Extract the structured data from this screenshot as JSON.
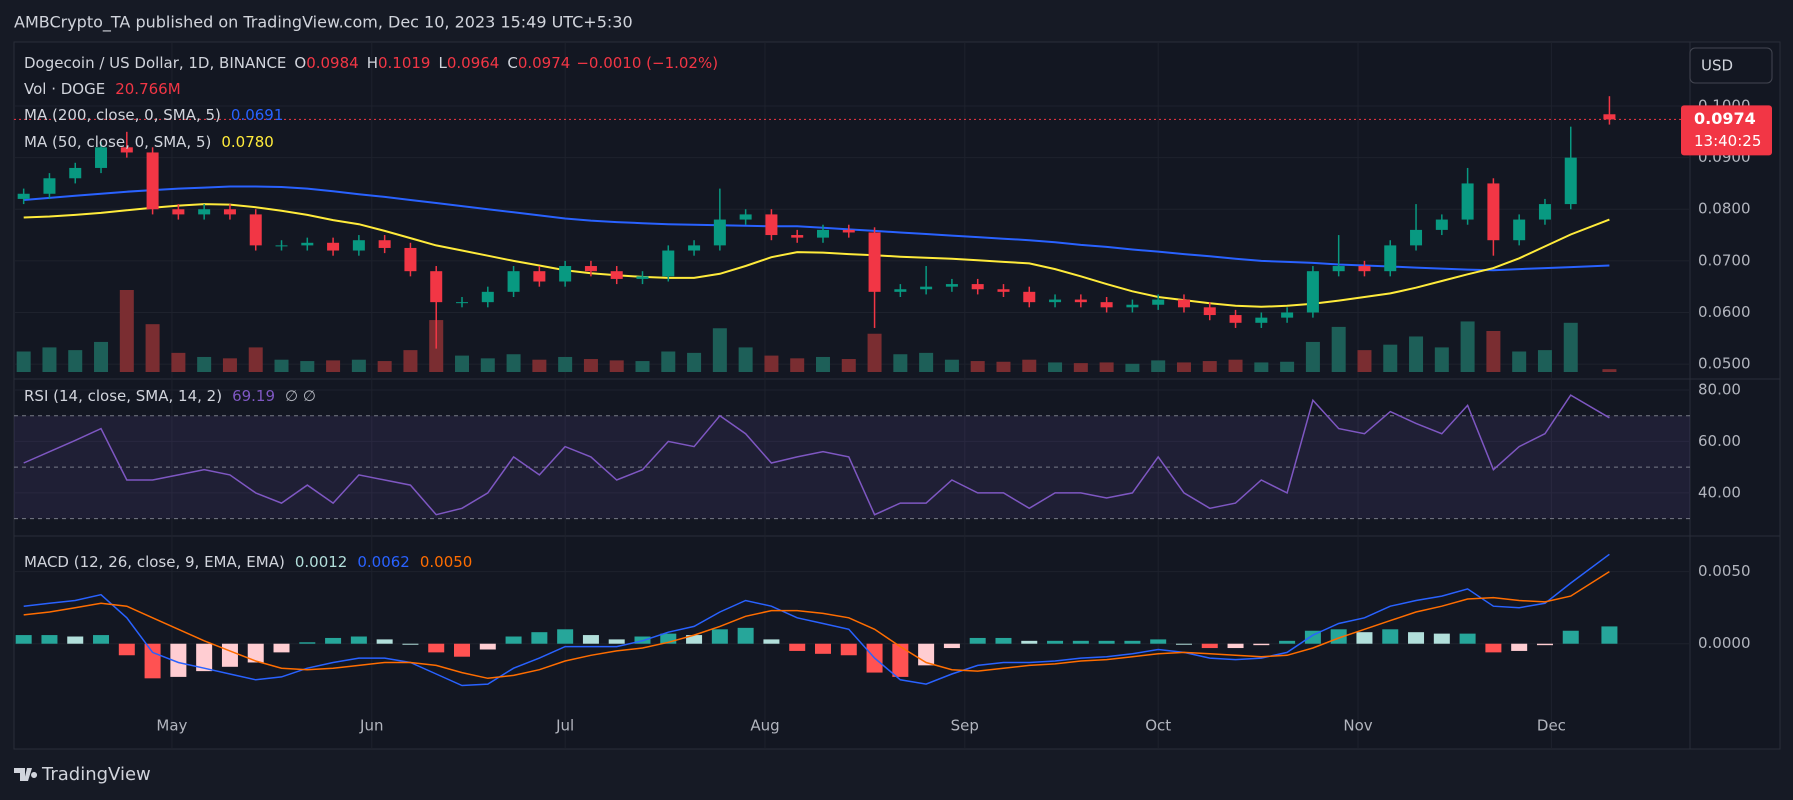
{
  "header": {
    "text": "AMBCrypto_TA published on TradingView.com, Dec 10, 2023 15:49 UTC+5:30"
  },
  "footer": {
    "brand": "TradingView"
  },
  "chart_data": {
    "type": "candlestick",
    "symbol": "Dogecoin / US Dollar, 1D, BINANCE",
    "ohlc_legend": [
      {
        "label": "O",
        "value": 0.0984
      },
      {
        "label": "H",
        "value": 0.1019
      },
      {
        "label": "L",
        "value": 0.0964
      },
      {
        "label": "C",
        "value": 0.0974
      }
    ],
    "change": "−0.0010 (−1.02%)",
    "currency": "USD",
    "last_price": 0.0974,
    "countdown": "13:40:25",
    "up_color": "#089981",
    "down_color": "#f23645",
    "x": [
      0,
      4,
      8,
      12,
      16,
      20,
      24,
      28,
      32,
      36,
      40,
      44,
      48,
      52,
      56,
      60,
      64,
      68,
      72,
      76,
      80,
      84,
      88,
      92,
      96,
      100,
      104,
      108,
      112,
      116,
      120,
      124,
      128,
      132,
      136,
      140,
      144,
      148,
      152,
      156,
      160,
      164,
      168,
      172,
      176,
      180,
      184,
      188,
      192,
      196,
      200,
      204,
      208,
      212,
      216,
      220,
      224,
      228,
      232,
      236,
      240,
      246
    ],
    "xlim": [
      -1.5,
      258.5
    ],
    "xticks": [
      {
        "value": 23,
        "label": "May"
      },
      {
        "value": 54,
        "label": "Jun"
      },
      {
        "value": 84,
        "label": "Jul"
      },
      {
        "value": 115,
        "label": "Aug"
      },
      {
        "value": 146,
        "label": "Sep"
      },
      {
        "value": 176,
        "label": "Oct"
      },
      {
        "value": 207,
        "label": "Nov"
      },
      {
        "value": 237,
        "label": "Dec"
      }
    ],
    "ylim": [
      0.0475,
      0.1124
    ],
    "yticks": [
      {
        "value": 0.05,
        "label": "0.0500"
      },
      {
        "value": 0.06,
        "label": "0.0600"
      },
      {
        "value": 0.07,
        "label": "0.0700"
      },
      {
        "value": 0.08,
        "label": "0.0800"
      },
      {
        "value": 0.09,
        "label": "0.0900"
      },
      {
        "value": 0.1,
        "label": "0.1000"
      }
    ],
    "grid": true,
    "open": [
      0.082,
      0.083,
      0.086,
      0.088,
      0.092,
      0.091,
      0.08,
      0.079,
      0.08,
      0.079,
      0.073,
      0.073,
      0.0735,
      0.072,
      0.074,
      0.0725,
      0.068,
      0.062,
      0.062,
      0.064,
      0.068,
      0.066,
      0.069,
      0.068,
      0.0665,
      0.067,
      0.072,
      0.073,
      0.078,
      0.079,
      0.075,
      0.0745,
      0.076,
      0.0755,
      0.064,
      0.0645,
      0.065,
      0.0655,
      0.0645,
      0.064,
      0.062,
      0.0625,
      0.062,
      0.061,
      0.0615,
      0.0625,
      0.061,
      0.0595,
      0.058,
      0.059,
      0.06,
      0.068,
      0.069,
      0.068,
      0.073,
      0.076,
      0.078,
      0.085,
      0.074,
      0.078,
      0.081,
      0.0984
    ],
    "high": [
      0.084,
      0.087,
      0.089,
      0.093,
      0.095,
      0.092,
      0.081,
      0.081,
      0.081,
      0.08,
      0.074,
      0.0745,
      0.0745,
      0.075,
      0.075,
      0.0735,
      0.069,
      0.063,
      0.065,
      0.069,
      0.069,
      0.07,
      0.07,
      0.069,
      0.068,
      0.073,
      0.074,
      0.084,
      0.08,
      0.08,
      0.076,
      0.077,
      0.077,
      0.0765,
      0.0655,
      0.069,
      0.0665,
      0.0665,
      0.0655,
      0.065,
      0.0635,
      0.0635,
      0.063,
      0.0625,
      0.0635,
      0.0635,
      0.062,
      0.0605,
      0.06,
      0.061,
      0.069,
      0.075,
      0.07,
      0.074,
      0.081,
      0.079,
      0.088,
      0.086,
      0.079,
      0.082,
      0.096,
      0.1019
    ],
    "low": [
      0.081,
      0.082,
      0.085,
      0.087,
      0.09,
      0.079,
      0.078,
      0.078,
      0.078,
      0.072,
      0.072,
      0.072,
      0.071,
      0.071,
      0.0715,
      0.067,
      0.053,
      0.061,
      0.061,
      0.063,
      0.065,
      0.065,
      0.067,
      0.0655,
      0.0655,
      0.066,
      0.071,
      0.072,
      0.077,
      0.074,
      0.0735,
      0.0735,
      0.0745,
      0.057,
      0.063,
      0.0635,
      0.064,
      0.0635,
      0.063,
      0.061,
      0.061,
      0.061,
      0.06,
      0.06,
      0.0605,
      0.06,
      0.0585,
      0.057,
      0.057,
      0.058,
      0.059,
      0.067,
      0.067,
      0.067,
      0.072,
      0.075,
      0.077,
      0.071,
      0.073,
      0.077,
      0.08,
      0.0964
    ],
    "close": [
      0.083,
      0.086,
      0.088,
      0.092,
      0.091,
      0.08,
      0.079,
      0.08,
      0.079,
      0.073,
      0.073,
      0.0735,
      0.072,
      0.074,
      0.0725,
      0.068,
      0.062,
      0.062,
      0.064,
      0.068,
      0.066,
      0.069,
      0.068,
      0.0665,
      0.067,
      0.072,
      0.073,
      0.078,
      0.079,
      0.075,
      0.0745,
      0.076,
      0.0755,
      0.064,
      0.0645,
      0.065,
      0.0655,
      0.0645,
      0.064,
      0.062,
      0.0625,
      0.062,
      0.061,
      0.0615,
      0.0625,
      0.061,
      0.0595,
      0.058,
      0.059,
      0.06,
      0.068,
      0.069,
      0.068,
      0.073,
      0.076,
      0.078,
      0.085,
      0.074,
      0.078,
      0.081,
      0.09,
      0.0974
    ],
    "volume": {
      "name": "Vol · DOGE",
      "legend_value": "20.766M",
      "up_color": "#1d5f58",
      "down_color": "#7a2d31",
      "values": [
        150,
        180,
        160,
        220,
        600,
        350,
        140,
        110,
        100,
        180,
        90,
        80,
        85,
        90,
        80,
        160,
        380,
        120,
        100,
        130,
        90,
        110,
        95,
        85,
        80,
        150,
        140,
        320,
        180,
        120,
        100,
        110,
        95,
        280,
        130,
        140,
        90,
        80,
        75,
        90,
        70,
        65,
        70,
        60,
        85,
        70,
        80,
        90,
        70,
        75,
        220,
        330,
        160,
        200,
        260,
        180,
        370,
        300,
        150,
        160,
        360,
        20.766
      ]
    },
    "overlays": [
      {
        "name": "MA (200, close, 0, SMA, 5)",
        "color": "#2962ff",
        "legend_value": "0.0691",
        "values": [
          0.0818,
          0.0822,
          0.0826,
          0.083,
          0.0834,
          0.0837,
          0.084,
          0.0842,
          0.0844,
          0.0844,
          0.0843,
          0.084,
          0.0835,
          0.0829,
          0.0824,
          0.0818,
          0.0812,
          0.0806,
          0.08,
          0.0794,
          0.0788,
          0.0782,
          0.0778,
          0.0775,
          0.0773,
          0.0771,
          0.077,
          0.0769,
          0.0768,
          0.0767,
          0.0767,
          0.0764,
          0.0761,
          0.0758,
          0.0755,
          0.0752,
          0.0749,
          0.0746,
          0.0743,
          0.074,
          0.0736,
          0.0731,
          0.0727,
          0.0722,
          0.0718,
          0.0713,
          0.0709,
          0.0704,
          0.07,
          0.0698,
          0.0696,
          0.0693,
          0.0691,
          0.0689,
          0.0687,
          0.0685,
          0.0683,
          0.0682,
          0.0684,
          0.0686,
          0.0688,
          0.0691
        ]
      },
      {
        "name": "MA (50, close, 0, SMA, 5)",
        "color": "#ffeb3b",
        "legend_value": "0.0780",
        "values": [
          0.0784,
          0.0786,
          0.0789,
          0.0793,
          0.0798,
          0.0803,
          0.0807,
          0.081,
          0.0809,
          0.0804,
          0.0797,
          0.0789,
          0.0779,
          0.0771,
          0.0758,
          0.0744,
          0.073,
          0.072,
          0.071,
          0.07,
          0.0691,
          0.0682,
          0.0676,
          0.0672,
          0.0669,
          0.0667,
          0.0667,
          0.0675,
          0.069,
          0.0707,
          0.0717,
          0.0716,
          0.0713,
          0.0711,
          0.0708,
          0.0706,
          0.0704,
          0.0701,
          0.0698,
          0.0695,
          0.0684,
          0.067,
          0.0655,
          0.0641,
          0.063,
          0.0624,
          0.0618,
          0.0613,
          0.0611,
          0.0613,
          0.0617,
          0.0623,
          0.063,
          0.0637,
          0.0648,
          0.0661,
          0.0674,
          0.0686,
          0.0705,
          0.0728,
          0.0751,
          0.078
        ]
      }
    ],
    "rsi": {
      "name": "RSI (14, close, SMA, 14, 2)",
      "color": "#7e57c2",
      "legend_value": "69.19",
      "extra": "∅ ∅",
      "ylim": [
        24,
        83.5
      ],
      "yticks": [
        {
          "value": 40,
          "label": "40.00"
        },
        {
          "value": 60,
          "label": "60.00"
        },
        {
          "value": 80,
          "label": "80.00"
        }
      ],
      "bands": [
        30,
        50,
        70
      ],
      "values": [
        51.6,
        56,
        60.4,
        65,
        45,
        45,
        47,
        49,
        47,
        40,
        36,
        43,
        36,
        47,
        45,
        43,
        31.5,
        34,
        40,
        54,
        47,
        58,
        54,
        45,
        49,
        60,
        58,
        70,
        63,
        51.6,
        54,
        56,
        54,
        31.5,
        36,
        36,
        45,
        40,
        40,
        34,
        40,
        40,
        38,
        40,
        54,
        40,
        34,
        36,
        45,
        40,
        76,
        65,
        63,
        71.6,
        67,
        63,
        74,
        49,
        58,
        63,
        78,
        69.19
      ]
    },
    "macd": {
      "name": "MACD (12, 26, close, 9, EMA, EMA)",
      "ylim": [
        -0.0073,
        0.0074
      ],
      "yticks": [
        {
          "value": 0,
          "label": "0.0000"
        },
        {
          "value": 0.005,
          "label": "0.0050"
        }
      ],
      "histogram": {
        "legend_value": "0.0012",
        "colors": [
          "#26a69a",
          "#b2dfdb",
          "#ff5252",
          "#ffcdd2"
        ],
        "values": [
          0.0006,
          0.0006,
          0.0005,
          0.0006,
          -0.0008,
          -0.0024,
          -0.0023,
          -0.0019,
          -0.0016,
          -0.0013,
          -0.0006,
          0.0001,
          0.0004,
          0.0005,
          0.0003,
          0.0,
          -0.0006,
          -0.0009,
          -0.0004,
          0.0005,
          0.0008,
          0.001,
          0.0006,
          0.0003,
          0.0005,
          0.0007,
          0.0006,
          0.001,
          0.0011,
          0.0003,
          -0.0005,
          -0.0007,
          -0.0008,
          -0.002,
          -0.0023,
          -0.0015,
          -0.0003,
          0.0004,
          0.0004,
          0.0002,
          0.0002,
          0.0002,
          0.0002,
          0.0002,
          0.0003,
          0.0,
          -0.0003,
          -0.0003,
          -0.0001,
          0.0002,
          0.0009,
          0.001,
          0.0008,
          0.001,
          0.0008,
          0.0007,
          0.0007,
          -0.0006,
          -0.0005,
          -0.0001,
          0.0009,
          0.0012
        ]
      },
      "lines": [
        {
          "color": "#2962ff",
          "legend_value": "0.0062",
          "values": [
            0.0026,
            0.0028,
            0.003,
            0.0034,
            0.0018,
            -0.0006,
            -0.0013,
            -0.0017,
            -0.0021,
            -0.0025,
            -0.0023,
            -0.0017,
            -0.0013,
            -0.001,
            -0.001,
            -0.0013,
            -0.0021,
            -0.0029,
            -0.0028,
            -0.0017,
            -0.001,
            -0.0002,
            -0.0002,
            -0.0002,
            0.0002,
            0.0008,
            0.0012,
            0.0022,
            0.003,
            0.0026,
            0.0018,
            0.0014,
            0.001,
            -0.001,
            -0.0025,
            -0.0028,
            -0.0021,
            -0.0015,
            -0.0013,
            -0.0013,
            -0.0012,
            -0.001,
            -0.0009,
            -0.0007,
            -0.0004,
            -0.0006,
            -0.001,
            -0.0011,
            -0.001,
            -0.0006,
            0.0006,
            0.0014,
            0.0018,
            0.0026,
            0.003,
            0.0033,
            0.0038,
            0.0026,
            0.0025,
            0.0028,
            0.0042,
            0.0062
          ]
        },
        {
          "color": "#ff6d00",
          "legend_value": "0.0050",
          "values": [
            0.002,
            0.0022,
            0.0025,
            0.0028,
            0.0026,
            0.0018,
            0.001,
            0.0002,
            -0.0005,
            -0.0012,
            -0.0017,
            -0.0018,
            -0.0017,
            -0.0015,
            -0.0013,
            -0.0013,
            -0.0015,
            -0.002,
            -0.0024,
            -0.0022,
            -0.0018,
            -0.0012,
            -0.0008,
            -0.0005,
            -0.0003,
            0.0001,
            0.0006,
            0.0012,
            0.0019,
            0.0023,
            0.0023,
            0.0021,
            0.0018,
            0.001,
            -0.0002,
            -0.0013,
            -0.0018,
            -0.0019,
            -0.0017,
            -0.0015,
            -0.0014,
            -0.0012,
            -0.0011,
            -0.0009,
            -0.0007,
            -0.0006,
            -0.0007,
            -0.0008,
            -0.0009,
            -0.0008,
            -0.0003,
            0.0004,
            0.001,
            0.0016,
            0.0022,
            0.0026,
            0.0031,
            0.0032,
            0.003,
            0.0029,
            0.0033,
            0.005
          ]
        }
      ]
    }
  }
}
